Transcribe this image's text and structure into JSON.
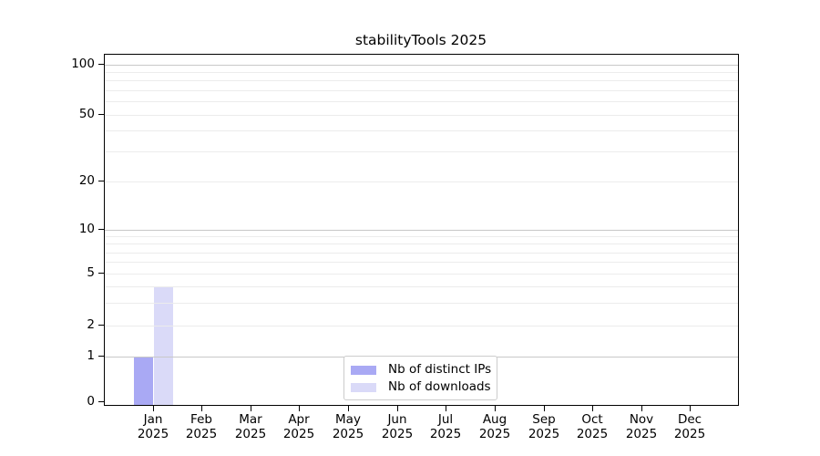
{
  "chart_data": {
    "type": "bar",
    "title": "stabilityTools 2025",
    "categories": [
      "Jan 2025",
      "Feb 2025",
      "Mar 2025",
      "Apr 2025",
      "May 2025",
      "Jun 2025",
      "Jul 2025",
      "Aug 2025",
      "Sep 2025",
      "Oct 2025",
      "Nov 2025",
      "Dec 2025"
    ],
    "series": [
      {
        "name": "Nb of distinct IPs",
        "color": "#a9a9f4",
        "values": [
          1,
          0,
          0,
          0,
          0,
          0,
          0,
          0,
          0,
          0,
          0,
          0
        ]
      },
      {
        "name": "Nb of downloads",
        "color": "#dadaf8",
        "values": [
          4,
          0,
          0,
          0,
          0,
          0,
          0,
          0,
          0,
          0,
          0,
          0
        ]
      }
    ],
    "yticks": [
      0,
      1,
      2,
      5,
      10,
      20,
      50,
      100
    ],
    "ylim": [
      0,
      100
    ],
    "yscale": "symlog",
    "xlabel": "",
    "ylabel": "",
    "grid": "horizontal major and minor gridlines, drawn over bars",
    "legend_position": "lower center",
    "colors": {
      "axis": "#000000",
      "major_grid": "#c8c8c8",
      "minor_grid": "#ececec",
      "legend_border": "#cccccc",
      "background": "#ffffff"
    }
  }
}
